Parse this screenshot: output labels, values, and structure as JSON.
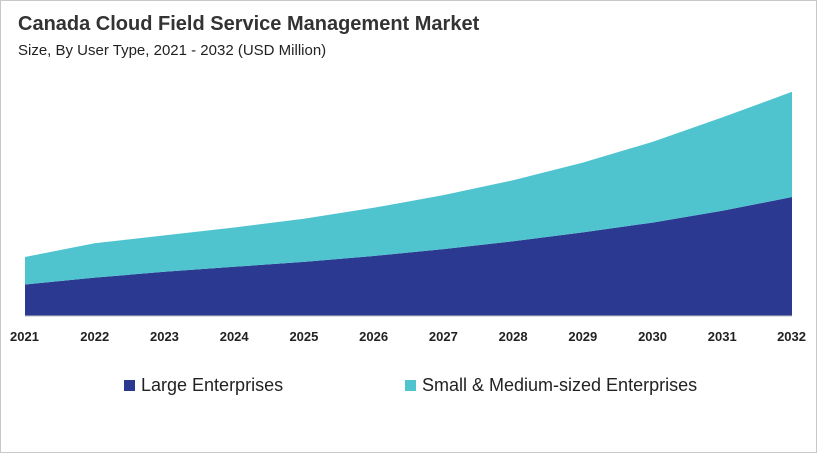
{
  "chart_data": {
    "type": "area",
    "stacked": true,
    "title": "Canada Cloud Field Service Management Market",
    "subtitle": "Size, By User Type, 2021 - 2032 (USD Million)",
    "xlabel": "",
    "ylabel": "",
    "categories": [
      "2021",
      "2022",
      "2023",
      "2024",
      "2025",
      "2026",
      "2027",
      "2028",
      "2029",
      "2030",
      "2031",
      "2032"
    ],
    "series": [
      {
        "name": "Large Enterprises",
        "color": "#2b3990",
        "values": [
          32,
          39,
          45,
          50,
          55,
          61,
          68,
          76,
          85,
          95,
          107,
          121
        ]
      },
      {
        "name": "Small & Medium-sized Enterprises",
        "color": "#4fc4cf",
        "values": [
          28,
          35,
          37,
          40,
          44,
          49,
          55,
          62,
          71,
          82,
          95,
          107
        ]
      }
    ],
    "ylim": [
      0,
      240
    ],
    "grid": false,
    "legend_position": "bottom"
  }
}
